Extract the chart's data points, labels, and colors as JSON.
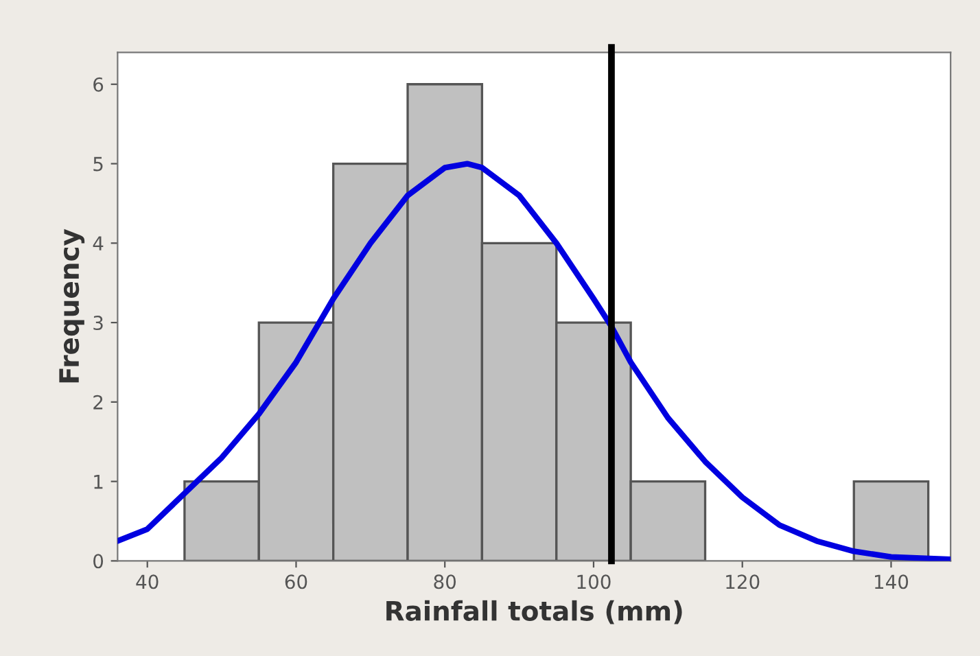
{
  "chart_data": {
    "type": "histogram",
    "xlabel": "Rainfall totals (mm)",
    "ylabel": "Frequency",
    "bins": [
      45,
      55,
      65,
      75,
      85,
      95,
      105,
      115,
      125,
      135,
      145
    ],
    "values": [
      1,
      3,
      5,
      6,
      4,
      3,
      1,
      0,
      0,
      1
    ],
    "color": "#c0c0c0",
    "series": [
      {
        "type": "line",
        "color": "#0000e0",
        "x": [
          36,
          40,
          45,
          50,
          55,
          60,
          65,
          70,
          75,
          80,
          83,
          85,
          90,
          95,
          100,
          102.4,
          105,
          110,
          115,
          120,
          125,
          130,
          135,
          140,
          148
        ],
        "values": [
          0.25,
          0.4,
          0.85,
          1.3,
          1.85,
          2.5,
          3.3,
          4.0,
          4.6,
          4.95,
          5.0,
          4.95,
          4.6,
          4.0,
          3.3,
          2.95,
          2.5,
          1.8,
          1.25,
          0.8,
          0.45,
          0.25,
          0.12,
          0.05,
          0.02
        ]
      }
    ],
    "ref_lines": [
      {
        "axis": "x",
        "value": 102.4,
        "color": "#000000"
      }
    ],
    "xlim": [
      36,
      148
    ],
    "xticks": [
      40,
      60,
      80,
      100,
      120,
      140
    ],
    "ylim": [
      0,
      6.4
    ],
    "yticks": [
      0,
      1,
      2,
      3,
      4,
      5,
      6
    ],
    "grid": false,
    "legend": false
  }
}
